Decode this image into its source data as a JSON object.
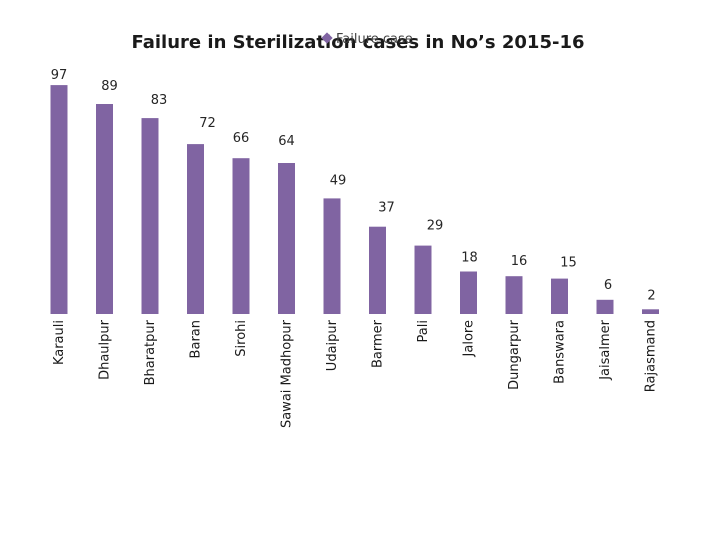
{
  "chart_data": {
    "type": "bar",
    "title": "Failure in Sterilization cases in No’s 2015-16",
    "legend": {
      "entries": [
        "Failure case"
      ],
      "placement": "top-center",
      "marker": "diamond"
    },
    "series": [
      {
        "name": "Failure case",
        "color": "#8064a2",
        "values": [
          97,
          89,
          83,
          72,
          66,
          64,
          49,
          37,
          29,
          18,
          16,
          15,
          6,
          2
        ]
      }
    ],
    "categories": [
      "Karauli",
      "Dhaulpur",
      "Bharatpur",
      "Baran",
      "Sirohi",
      "Sawai Madhopur",
      "Udaipur",
      "Barmer",
      "Pali",
      "Jalore",
      "Dungarpur",
      "Banswara",
      "Jaisalmer",
      "Rajasmand"
    ],
    "data_labels": [
      "97",
      "89",
      "83",
      "72",
      "66",
      "64",
      "49",
      "37",
      "29",
      "18",
      "16",
      "15",
      "6",
      "2"
    ],
    "ylim": [
      0,
      100
    ],
    "grid": false,
    "xlabel": "",
    "ylabel": ""
  }
}
